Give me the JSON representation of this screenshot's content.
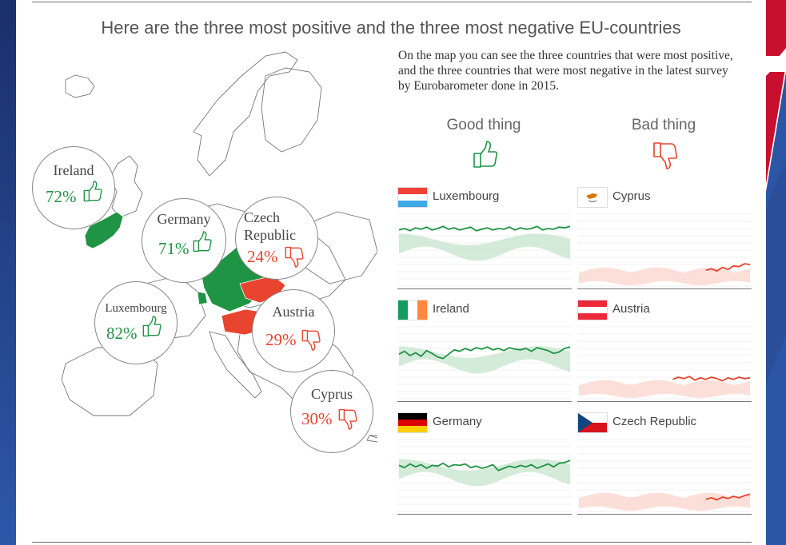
{
  "title": "Here are the three most positive and the three most negative EU-countries",
  "description": "On the map you can see the three countries that were most positive, and the three countries that were most negative in the latest survey by Eurobarometer done in 2015.",
  "columns": {
    "good": "Good thing",
    "bad": "Bad thing"
  },
  "colors": {
    "positive": "#1f9444",
    "negative": "#e8442f",
    "positive_band": "#cde8d3",
    "negative_band": "#fbd9d2"
  },
  "icons": {
    "good": "thumbs-up-icon",
    "bad": "thumbs-down-icon"
  },
  "map": {
    "bubbles": [
      {
        "name": "Ireland",
        "value": "72%",
        "sentiment": "good"
      },
      {
        "name": "Germany",
        "value": "71%",
        "sentiment": "good"
      },
      {
        "name": "Czech Republic",
        "value": "24%",
        "sentiment": "bad"
      },
      {
        "name": "Luxembourg",
        "value": "82%",
        "sentiment": "good"
      },
      {
        "name": "Austria",
        "value": "29%",
        "sentiment": "bad"
      },
      {
        "name": "Cyprus",
        "value": "30%",
        "sentiment": "bad"
      }
    ]
  },
  "chart_data": {
    "type": "line",
    "panels": [
      {
        "country": "Luxembourg",
        "column": "good",
        "values": [
          78,
          80,
          77,
          81,
          79,
          82,
          78,
          80,
          83,
          79,
          81,
          78,
          80,
          82,
          77,
          79,
          81,
          78,
          80,
          79,
          82,
          78,
          81,
          79,
          80,
          83,
          78,
          80,
          79,
          82,
          81,
          83
        ]
      },
      {
        "country": "Cyprus",
        "column": "bad",
        "values": [
          null,
          null,
          null,
          null,
          null,
          null,
          null,
          null,
          null,
          null,
          null,
          null,
          null,
          null,
          null,
          null,
          null,
          null,
          null,
          null,
          null,
          null,
          null,
          22,
          24,
          21,
          26,
          23,
          28,
          27,
          31,
          30
        ]
      },
      {
        "country": "Ireland",
        "column": "good",
        "values": [
          62,
          66,
          60,
          64,
          59,
          67,
          63,
          58,
          56,
          62,
          68,
          66,
          70,
          67,
          71,
          69,
          72,
          68,
          70,
          67,
          71,
          69,
          68,
          70,
          66,
          71,
          69,
          67,
          63,
          65,
          70,
          72
        ]
      },
      {
        "country": "Austria",
        "column": "bad",
        "values": [
          null,
          null,
          null,
          null,
          null,
          null,
          null,
          null,
          null,
          null,
          null,
          null,
          null,
          null,
          null,
          null,
          null,
          27,
          30,
          28,
          31,
          26,
          29,
          27,
          30,
          28,
          25,
          29,
          27,
          30,
          28,
          29
        ]
      },
      {
        "country": "Germany",
        "column": "good",
        "values": [
          64,
          61,
          66,
          62,
          65,
          60,
          64,
          63,
          67,
          62,
          65,
          64,
          66,
          61,
          63,
          60,
          62,
          65,
          57,
          60,
          63,
          61,
          64,
          62,
          65,
          60,
          63,
          66,
          62,
          67,
          68,
          71
        ]
      },
      {
        "country": "Czech Republic",
        "column": "bad",
        "values": [
          null,
          null,
          null,
          null,
          null,
          null,
          null,
          null,
          null,
          null,
          null,
          null,
          null,
          null,
          null,
          null,
          null,
          null,
          null,
          null,
          null,
          null,
          null,
          17,
          19,
          16,
          20,
          18,
          21,
          19,
          22,
          24
        ]
      }
    ],
    "ylim": [
      0,
      100
    ]
  }
}
